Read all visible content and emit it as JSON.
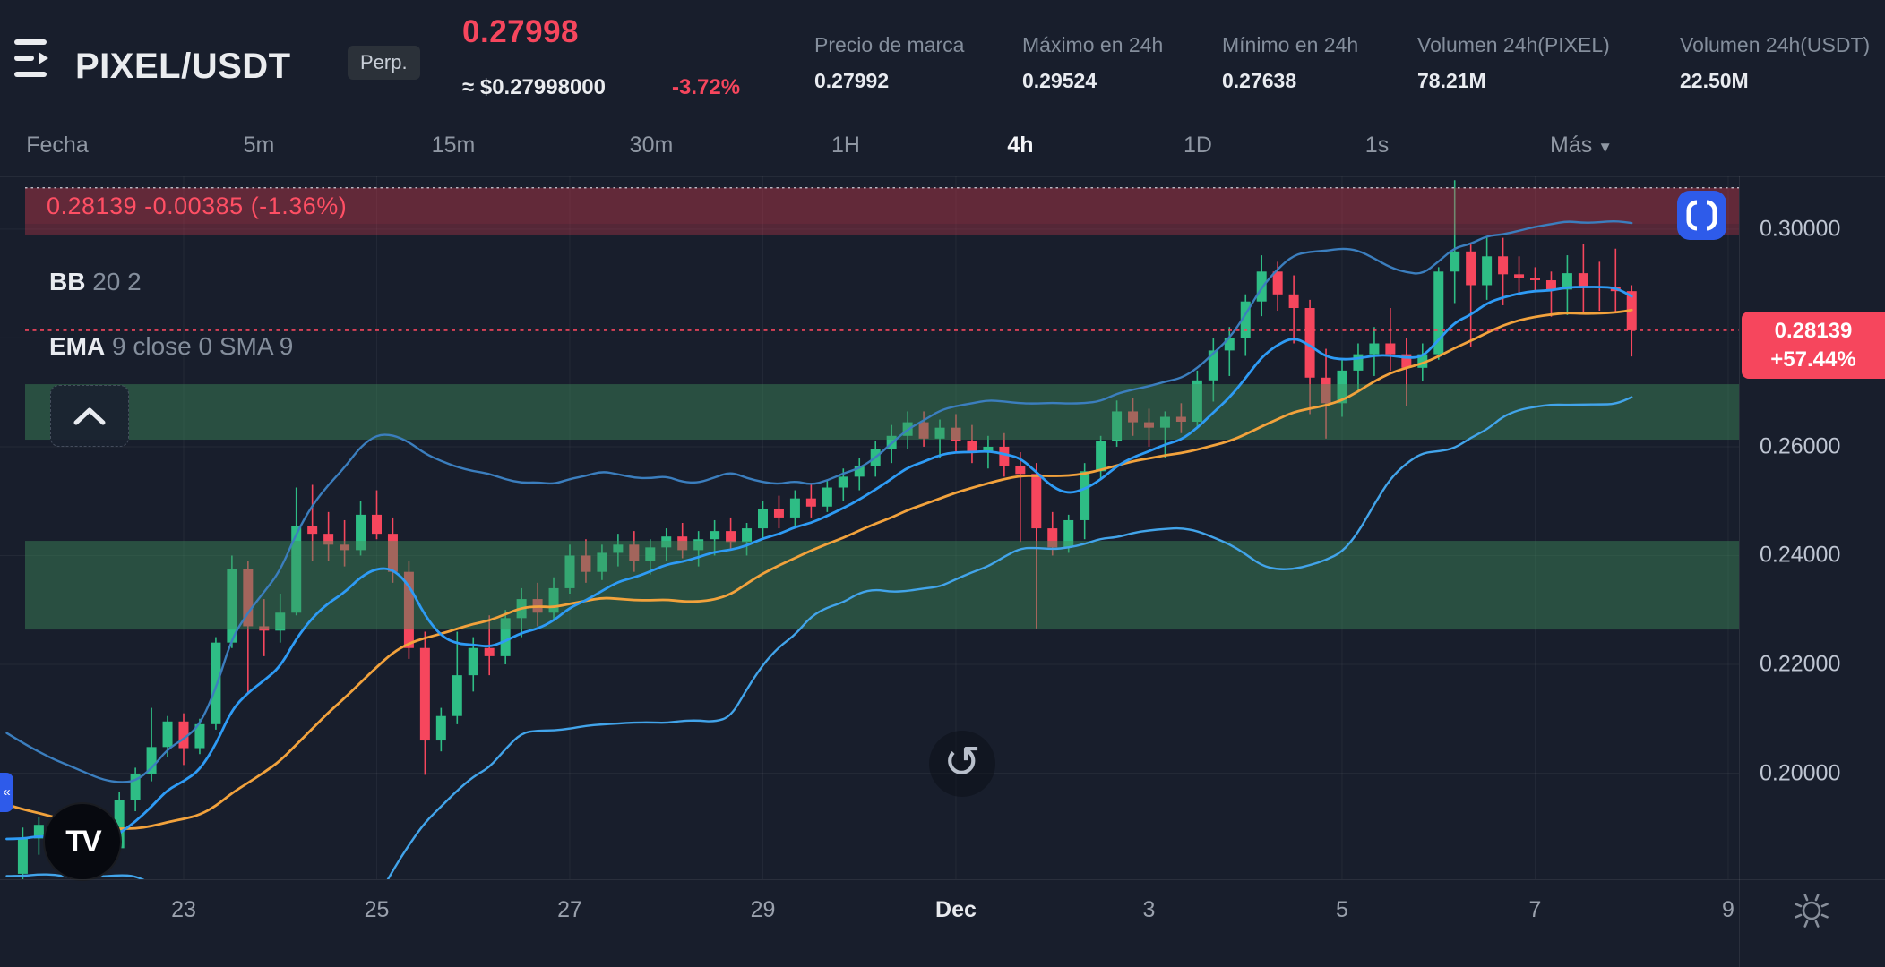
{
  "header": {
    "pair": "PIXEL/USDT",
    "contract_badge": "Perp.",
    "last_price": "0.27998",
    "approx_fiat": "≈ $0.27998000",
    "day_change": "-3.72%",
    "stats": [
      {
        "label": "Precio de marca",
        "value": "0.27992"
      },
      {
        "label": "Máximo en 24h",
        "value": "0.29524"
      },
      {
        "label": "Mínimo en 24h",
        "value": "0.27638"
      },
      {
        "label": "Volumen 24h(PIXEL)",
        "value": "78.21M"
      },
      {
        "label": "Volumen 24h(USDT)",
        "value": "22.50M"
      }
    ],
    "accent_red": "#F6465D",
    "accent_green": "#2EBD85"
  },
  "toolbar": {
    "items": [
      "Fecha",
      "5m",
      "15m",
      "30m",
      "1H",
      "4h",
      "1D",
      "1s",
      "Más"
    ],
    "selected": "4h",
    "caret_item": "Más"
  },
  "chart": {
    "banner_text": "0.28139  -0.00385 (-1.36%)",
    "indicator_bb_name": "BB",
    "indicator_bb_params": "20 2",
    "indicator_ema_name": "EMA",
    "indicator_ema_params": "9 close 0 SMA 9",
    "price_tag": {
      "price": "0.28139",
      "change": "+57.44%"
    },
    "reload_glyph": "↺",
    "tv_logo_text": "TV"
  },
  "chart_data": {
    "type": "candlestick",
    "title": "PIXEL/USDT Perpetual",
    "interval": "4h",
    "grid": true,
    "ylim": [
      0.1805,
      0.3097
    ],
    "y_axis": {
      "ticks": [
        {
          "label": "0.30000",
          "price": 0.3
        },
        {
          "label": "0.26000",
          "price": 0.26
        },
        {
          "label": "0.24000",
          "price": 0.24
        },
        {
          "label": "0.22000",
          "price": 0.22
        },
        {
          "label": "0.20000",
          "price": 0.2
        }
      ],
      "gridline_prices": [
        0.3,
        0.28,
        0.26,
        0.24,
        0.22,
        0.2
      ]
    },
    "x_axis": [
      {
        "label": "23",
        "k": 0,
        "strong": false
      },
      {
        "label": "25",
        "k": 12,
        "strong": false
      },
      {
        "label": "27",
        "k": 24,
        "strong": false
      },
      {
        "label": "29",
        "k": 36,
        "strong": false
      },
      {
        "label": "Dec",
        "k": 48,
        "strong": true
      },
      {
        "label": "3",
        "k": 60,
        "strong": false
      },
      {
        "label": "5",
        "k": 72,
        "strong": false
      },
      {
        "label": "7",
        "k": 84,
        "strong": false
      },
      {
        "label": "9",
        "k": 96,
        "strong": false
      }
    ],
    "price_line": {
      "price": 0.28139,
      "label": "0.28139",
      "change": "+57.44%"
    },
    "top_band": {
      "from": 0.299,
      "to": 0.3076
    },
    "zones": [
      {
        "from": 0.2613,
        "to": 0.2715
      },
      {
        "from": 0.2264,
        "to": 0.2427
      }
    ],
    "indicators": [
      {
        "type": "BB",
        "length": 20,
        "mult": 2,
        "basis_color": "#F2A23C",
        "band_color_up": "#3B7EBE",
        "band_color_dn": "#42A4EA"
      },
      {
        "type": "EMA",
        "length": 9,
        "color": "#2E9BF5"
      }
    ],
    "lead_in_closes": [
      0.206,
      0.204,
      0.2025,
      0.201,
      0.1995,
      0.1985,
      0.1975,
      0.199,
      0.196,
      0.1945,
      0.193,
      0.194,
      0.1915,
      0.19,
      0.189,
      0.188,
      0.187,
      0.1862,
      0.185,
      0.1825
    ],
    "candles": [
      [
        0.1815,
        0.19,
        0.1785,
        0.188
      ],
      [
        0.188,
        0.192,
        0.185,
        0.1905
      ],
      [
        0.1905,
        0.1925,
        0.1855,
        0.187
      ],
      [
        0.187,
        0.1895,
        0.1775,
        0.184
      ],
      [
        0.184,
        0.1905,
        0.183,
        0.189
      ],
      [
        0.189,
        0.191,
        0.1845,
        0.1862
      ],
      [
        0.1862,
        0.1965,
        0.1855,
        0.195
      ],
      [
        0.195,
        0.201,
        0.193,
        0.1998
      ],
      [
        0.1998,
        0.212,
        0.1985,
        0.2048
      ],
      [
        0.2048,
        0.2105,
        0.203,
        0.2095
      ],
      [
        0.2095,
        0.211,
        0.2015,
        0.2046
      ],
      [
        0.2046,
        0.21,
        0.2035,
        0.209
      ],
      [
        0.209,
        0.225,
        0.208,
        0.224
      ],
      [
        0.224,
        0.24,
        0.223,
        0.2375
      ],
      [
        0.2375,
        0.239,
        0.2145,
        0.227
      ],
      [
        0.227,
        0.232,
        0.2215,
        0.2262
      ],
      [
        0.2262,
        0.233,
        0.224,
        0.2295
      ],
      [
        0.2295,
        0.2525,
        0.229,
        0.2455
      ],
      [
        0.2455,
        0.253,
        0.239,
        0.244
      ],
      [
        0.244,
        0.248,
        0.239,
        0.242
      ],
      [
        0.242,
        0.2465,
        0.238,
        0.241
      ],
      [
        0.241,
        0.25,
        0.24,
        0.2475
      ],
      [
        0.2475,
        0.252,
        0.243,
        0.244
      ],
      [
        0.244,
        0.247,
        0.235,
        0.237
      ],
      [
        0.237,
        0.239,
        0.221,
        0.223
      ],
      [
        0.223,
        0.226,
        0.1997,
        0.206
      ],
      [
        0.206,
        0.212,
        0.204,
        0.2105
      ],
      [
        0.2105,
        0.226,
        0.209,
        0.218
      ],
      [
        0.218,
        0.225,
        0.215,
        0.223
      ],
      [
        0.223,
        0.229,
        0.218,
        0.2215
      ],
      [
        0.2215,
        0.23,
        0.22,
        0.2285
      ],
      [
        0.2285,
        0.234,
        0.225,
        0.232
      ],
      [
        0.232,
        0.235,
        0.227,
        0.2295
      ],
      [
        0.2295,
        0.236,
        0.228,
        0.234
      ],
      [
        0.234,
        0.242,
        0.233,
        0.24
      ],
      [
        0.24,
        0.243,
        0.235,
        0.237
      ],
      [
        0.237,
        0.242,
        0.2355,
        0.2405
      ],
      [
        0.2405,
        0.244,
        0.238,
        0.242
      ],
      [
        0.242,
        0.2445,
        0.237,
        0.239
      ],
      [
        0.239,
        0.243,
        0.2365,
        0.2415
      ],
      [
        0.2415,
        0.245,
        0.239,
        0.2435
      ],
      [
        0.2435,
        0.246,
        0.2395,
        0.241
      ],
      [
        0.241,
        0.2445,
        0.238,
        0.243
      ],
      [
        0.243,
        0.2465,
        0.24,
        0.2445
      ],
      [
        0.2445,
        0.247,
        0.241,
        0.2425
      ],
      [
        0.2425,
        0.246,
        0.24,
        0.245
      ],
      [
        0.245,
        0.25,
        0.243,
        0.2485
      ],
      [
        0.2485,
        0.251,
        0.245,
        0.247
      ],
      [
        0.247,
        0.252,
        0.2455,
        0.2505
      ],
      [
        0.2505,
        0.253,
        0.247,
        0.249
      ],
      [
        0.249,
        0.254,
        0.248,
        0.2525
      ],
      [
        0.2525,
        0.256,
        0.25,
        0.2545
      ],
      [
        0.2545,
        0.258,
        0.252,
        0.2565
      ],
      [
        0.2565,
        0.261,
        0.2545,
        0.2595
      ],
      [
        0.2595,
        0.264,
        0.257,
        0.262
      ],
      [
        0.262,
        0.2665,
        0.2595,
        0.2645
      ],
      [
        0.2645,
        0.2665,
        0.26,
        0.2615
      ],
      [
        0.2615,
        0.265,
        0.258,
        0.2635
      ],
      [
        0.2635,
        0.266,
        0.259,
        0.261
      ],
      [
        0.261,
        0.264,
        0.257,
        0.259
      ],
      [
        0.259,
        0.262,
        0.256,
        0.26
      ],
      [
        0.26,
        0.2625,
        0.2545,
        0.2565
      ],
      [
        0.2565,
        0.259,
        0.2425,
        0.255
      ],
      [
        0.255,
        0.257,
        0.2266,
        0.245
      ],
      [
        0.245,
        0.248,
        0.24,
        0.2415
      ],
      [
        0.2415,
        0.2475,
        0.2405,
        0.2465
      ],
      [
        0.2465,
        0.257,
        0.243,
        0.2555
      ],
      [
        0.2555,
        0.262,
        0.254,
        0.261
      ],
      [
        0.261,
        0.2685,
        0.26,
        0.2665
      ],
      [
        0.2665,
        0.269,
        0.262,
        0.2645
      ],
      [
        0.2645,
        0.267,
        0.26,
        0.2635
      ],
      [
        0.2635,
        0.2665,
        0.258,
        0.2655
      ],
      [
        0.2655,
        0.268,
        0.2625,
        0.2646
      ],
      [
        0.2646,
        0.274,
        0.2635,
        0.2722
      ],
      [
        0.2722,
        0.28,
        0.2683,
        0.2777
      ],
      [
        0.2777,
        0.282,
        0.273,
        0.28
      ],
      [
        0.28,
        0.288,
        0.2767,
        0.2867
      ],
      [
        0.2867,
        0.2952,
        0.284,
        0.2922
      ],
      [
        0.2922,
        0.294,
        0.285,
        0.288
      ],
      [
        0.288,
        0.2915,
        0.279,
        0.2855
      ],
      [
        0.2855,
        0.287,
        0.266,
        0.2727
      ],
      [
        0.2727,
        0.278,
        0.2615,
        0.268
      ],
      [
        0.268,
        0.276,
        0.2655,
        0.274
      ],
      [
        0.274,
        0.279,
        0.27,
        0.277
      ],
      [
        0.277,
        0.282,
        0.273,
        0.279
      ],
      [
        0.279,
        0.2855,
        0.274,
        0.277
      ],
      [
        0.277,
        0.28,
        0.2675,
        0.2745
      ],
      [
        0.2745,
        0.279,
        0.272,
        0.277
      ],
      [
        0.277,
        0.293,
        0.276,
        0.2922
      ],
      [
        0.2922,
        0.309,
        0.2864,
        0.2959
      ],
      [
        0.2959,
        0.2972,
        0.2783,
        0.2897
      ],
      [
        0.2897,
        0.2986,
        0.287,
        0.295
      ],
      [
        0.295,
        0.2984,
        0.286,
        0.2917
      ],
      [
        0.2917,
        0.295,
        0.288,
        0.291
      ],
      [
        0.291,
        0.293,
        0.2885,
        0.2906
      ],
      [
        0.2906,
        0.2922,
        0.2839,
        0.2889
      ],
      [
        0.2889,
        0.2952,
        0.2842,
        0.2919
      ],
      [
        0.2919,
        0.2972,
        0.2844,
        0.2895
      ],
      [
        0.2895,
        0.294,
        0.285,
        0.2894
      ],
      [
        0.2894,
        0.2964,
        0.2847,
        0.2886
      ],
      [
        0.2886,
        0.2897,
        0.2766,
        0.2814
      ]
    ],
    "colors": {
      "up": "#2EBD85",
      "down": "#F6465D",
      "zone_green": "rgba(62,140,90,0.45)",
      "banner_red": "rgba(214,60,80,0.32)"
    }
  }
}
